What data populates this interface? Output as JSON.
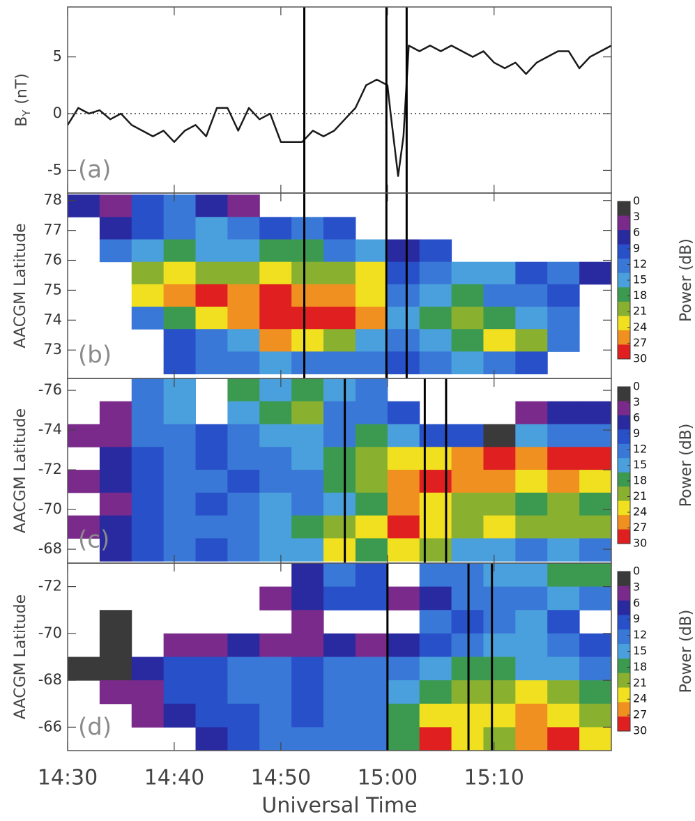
{
  "chart_data": [
    {
      "type": "line",
      "panel_label": "(a)",
      "ylabel": "B",
      "ylabel_subscript": "Y",
      "ylabel_unit": "(nT)",
      "x": [
        870,
        871,
        872,
        873,
        874,
        875,
        876,
        877,
        878,
        879,
        880,
        881,
        882,
        883,
        884,
        885,
        886,
        887,
        888,
        889,
        890,
        891,
        892,
        893,
        894,
        895,
        896,
        897,
        898,
        899,
        900,
        900.3,
        901,
        901.5,
        902,
        903,
        904,
        905,
        906,
        907,
        908,
        909,
        910,
        911,
        912,
        913,
        914,
        915,
        916,
        917,
        918,
        919,
        920,
        921
      ],
      "values": [
        -1,
        0.5,
        0,
        0.3,
        -0.5,
        0,
        -1,
        -1.5,
        -2,
        -1.5,
        -2.5,
        -1.5,
        -1,
        -2,
        0.5,
        0.5,
        -1.5,
        0.5,
        -0.5,
        0,
        -2.5,
        -2.5,
        -2.5,
        -1.5,
        -2,
        -1.5,
        -0.5,
        0.5,
        2.5,
        3,
        2.5,
        0,
        -5.5,
        -2,
        6,
        5.5,
        6,
        5.5,
        6,
        5.5,
        5,
        5.5,
        4.5,
        4,
        4.5,
        3.5,
        4.5,
        5,
        5.5,
        5.5,
        4,
        5,
        5.5,
        6
      ],
      "color": "#1a1a1a",
      "xlim": [
        870,
        921
      ],
      "ylim": [
        -7,
        9.4
      ],
      "yticks": [
        -5,
        0,
        5
      ],
      "reference_line": 0,
      "markers_x": [
        892.2,
        899.9,
        901.8
      ]
    },
    {
      "type": "heatmap",
      "panel_label": "(b)",
      "ylabel": "AACGM Latitude",
      "xbins": [
        870,
        873,
        876,
        879,
        882,
        885,
        888,
        891,
        894,
        897,
        900,
        903,
        906,
        909,
        912,
        915,
        918,
        921
      ],
      "ybins": [
        78.2,
        77.45,
        76.7,
        75.95,
        75.2,
        74.45,
        73.7,
        72.95,
        72.2
      ],
      "values": [
        [
          6,
          3,
          9,
          12,
          6,
          3,
          null,
          null,
          null,
          null,
          null,
          null,
          null,
          null,
          null,
          null,
          null
        ],
        [
          null,
          6,
          9,
          12,
          15,
          12,
          9,
          12,
          9,
          null,
          null,
          null,
          null,
          null,
          null,
          null,
          null
        ],
        [
          null,
          12,
          15,
          18,
          15,
          15,
          18,
          18,
          12,
          15,
          6,
          9,
          null,
          null,
          null,
          null,
          null
        ],
        [
          null,
          null,
          21,
          24,
          21,
          21,
          24,
          21,
          21,
          24,
          9,
          12,
          15,
          15,
          9,
          12,
          6
        ],
        [
          null,
          null,
          24,
          27,
          30,
          27,
          30,
          27,
          27,
          24,
          12,
          15,
          18,
          12,
          12,
          9,
          null
        ],
        [
          null,
          null,
          12,
          18,
          24,
          27,
          30,
          30,
          30,
          27,
          15,
          18,
          21,
          18,
          15,
          12,
          null
        ],
        [
          null,
          null,
          null,
          9,
          12,
          15,
          27,
          24,
          21,
          15,
          12,
          15,
          18,
          24,
          21,
          12,
          null
        ],
        [
          null,
          null,
          null,
          9,
          12,
          12,
          15,
          12,
          12,
          12,
          9,
          12,
          15,
          12,
          9,
          null,
          null
        ]
      ],
      "xlim": [
        870,
        921
      ],
      "ylim": [
        72.05,
        78.25
      ],
      "yticks": [
        73,
        74,
        75,
        76,
        77,
        78
      ],
      "clim": [
        0,
        30
      ],
      "cticks": [
        0,
        3,
        6,
        9,
        12,
        15,
        18,
        21,
        24,
        27,
        30
      ],
      "colors": [
        "#3a3a3a",
        "#7a2a8a",
        "#2a2aa0",
        "#2850c8",
        "#3a78d8",
        "#4aa0dc",
        "#3c9a50",
        "#8ab030",
        "#f0e020",
        "#f09020",
        "#e02020"
      ],
      "colorbar_label": "Power (dB)",
      "markers_x": [
        892.2,
        899.9,
        901.8
      ]
    },
    {
      "type": "heatmap",
      "panel_label": "(c)",
      "ylabel": "AACGM Latitude",
      "xbins": [
        870,
        873,
        876,
        879,
        882,
        885,
        888,
        891,
        894,
        897,
        900,
        903,
        906,
        909,
        912,
        915,
        918,
        921
      ],
      "ybins": [
        -76.6,
        -75.45,
        -74.3,
        -73.15,
        -72.0,
        -70.85,
        -69.7,
        -68.55,
        -67.4
      ],
      "values": [
        [
          null,
          null,
          12,
          15,
          null,
          18,
          15,
          18,
          15,
          12,
          null,
          null,
          null,
          null,
          null,
          null,
          null
        ],
        [
          null,
          3,
          12,
          15,
          null,
          15,
          18,
          21,
          12,
          12,
          9,
          null,
          null,
          null,
          3,
          6,
          6
        ],
        [
          3,
          3,
          12,
          12,
          9,
          12,
          15,
          15,
          12,
          18,
          15,
          9,
          9,
          0,
          15,
          12,
          12
        ],
        [
          null,
          6,
          9,
          12,
          9,
          12,
          12,
          15,
          18,
          21,
          24,
          24,
          27,
          30,
          27,
          30,
          30
        ],
        [
          3,
          6,
          9,
          12,
          12,
          9,
          12,
          12,
          18,
          21,
          27,
          30,
          27,
          27,
          24,
          27,
          24
        ],
        [
          null,
          3,
          9,
          12,
          9,
          12,
          15,
          12,
          15,
          18,
          27,
          24,
          21,
          21,
          18,
          21,
          18
        ],
        [
          3,
          6,
          9,
          12,
          12,
          12,
          15,
          18,
          21,
          24,
          30,
          24,
          21,
          24,
          21,
          21,
          21
        ],
        [
          null,
          6,
          9,
          12,
          9,
          12,
          15,
          15,
          24,
          18,
          24,
          21,
          15,
          15,
          12,
          15,
          12
        ]
      ],
      "xlim": [
        870,
        921
      ],
      "ylim": [
        -67.3,
        -76.6
      ],
      "yticks": [
        -76,
        -74,
        -72,
        -70,
        -68
      ],
      "clim": [
        0,
        30
      ],
      "cticks": [
        0,
        3,
        6,
        9,
        12,
        15,
        18,
        21,
        24,
        27,
        30
      ],
      "colors": [
        "#3a3a3a",
        "#7a2a8a",
        "#2a2aa0",
        "#2850c8",
        "#3a78d8",
        "#4aa0dc",
        "#3c9a50",
        "#8ab030",
        "#f0e020",
        "#f09020",
        "#e02020"
      ],
      "colorbar_label": "Power (dB)",
      "markers_x": [
        896.0,
        903.5,
        905.5
      ]
    },
    {
      "type": "heatmap",
      "panel_label": "(d)",
      "ylabel": "AACGM Latitude",
      "xbins": [
        870,
        873,
        876,
        879,
        882,
        885,
        888,
        891,
        894,
        897,
        900,
        903,
        906,
        909,
        912,
        915,
        918,
        921
      ],
      "ybins": [
        -73,
        -72,
        -71,
        -70,
        -69,
        -68,
        -67,
        -66,
        -65
      ],
      "values": [
        [
          null,
          null,
          null,
          null,
          null,
          null,
          null,
          6,
          12,
          9,
          null,
          12,
          12,
          15,
          15,
          18,
          18
        ],
        [
          null,
          null,
          null,
          null,
          null,
          null,
          3,
          6,
          9,
          9,
          3,
          6,
          12,
          12,
          12,
          15,
          12
        ],
        [
          null,
          0,
          null,
          null,
          null,
          null,
          null,
          3,
          null,
          null,
          null,
          12,
          9,
          12,
          15,
          9,
          null
        ],
        [
          null,
          0,
          null,
          3,
          3,
          6,
          3,
          3,
          6,
          3,
          6,
          9,
          12,
          15,
          15,
          12,
          9
        ],
        [
          0,
          0,
          6,
          9,
          9,
          12,
          12,
          9,
          12,
          12,
          12,
          15,
          18,
          18,
          15,
          15,
          12
        ],
        [
          null,
          3,
          3,
          9,
          9,
          12,
          12,
          9,
          12,
          12,
          15,
          18,
          21,
          21,
          24,
          21,
          18
        ],
        [
          null,
          null,
          3,
          6,
          9,
          9,
          12,
          9,
          12,
          12,
          18,
          24,
          24,
          24,
          27,
          24,
          21
        ],
        [
          null,
          null,
          null,
          null,
          6,
          9,
          12,
          12,
          12,
          12,
          18,
          30,
          24,
          21,
          27,
          30,
          24
        ]
      ],
      "xlim": [
        870,
        921
      ],
      "ylim": [
        -65.0,
        -73.0
      ],
      "yticks": [
        -72,
        -70,
        -68,
        -66
      ],
      "clim": [
        0,
        30
      ],
      "cticks": [
        0,
        3,
        6,
        9,
        12,
        15,
        18,
        21,
        24,
        27,
        30
      ],
      "colors": [
        "#3a3a3a",
        "#7a2a8a",
        "#2a2aa0",
        "#2850c8",
        "#3a78d8",
        "#4aa0dc",
        "#3c9a50",
        "#8ab030",
        "#f0e020",
        "#f09020",
        "#e02020"
      ],
      "colorbar_label": "Power (dB)",
      "markers_x": [
        900.0,
        907.6,
        909.8
      ],
      "xticks": [
        {
          "value": 870,
          "label": "14:30"
        },
        {
          "value": 880,
          "label": "14:40"
        },
        {
          "value": 890,
          "label": "14:50"
        },
        {
          "value": 900,
          "label": "15:00"
        },
        {
          "value": 910,
          "label": "15:10"
        }
      ],
      "xlabel": "Universal Time"
    }
  ]
}
